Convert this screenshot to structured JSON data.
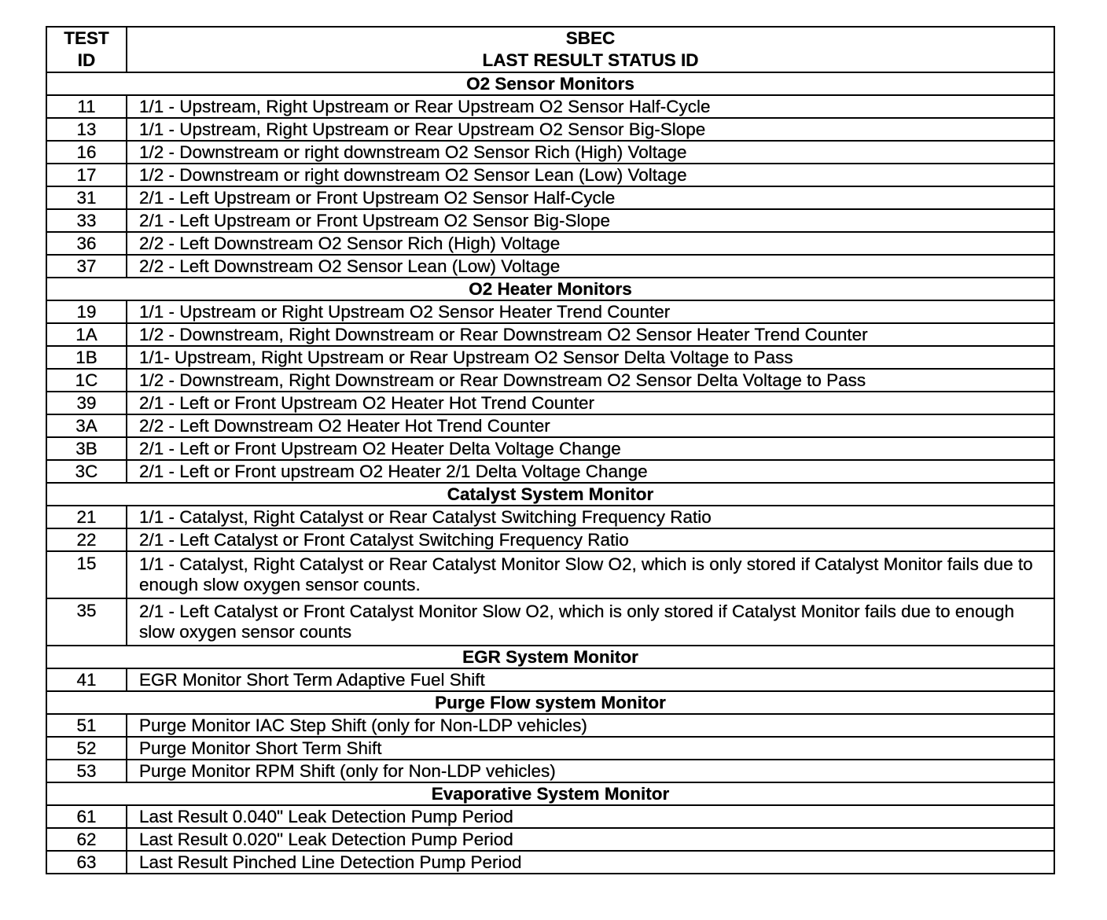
{
  "header": {
    "test_id_line1": "TEST",
    "test_id_line2": "ID",
    "title_line1": "SBEC",
    "title_line2": "LAST RESULT STATUS ID"
  },
  "sections": [
    {
      "title": "O2 Sensor Monitors",
      "rows": [
        {
          "id": "11",
          "desc": "1/1 - Upstream, Right Upstream or Rear Upstream O2 Sensor Half-Cycle"
        },
        {
          "id": "13",
          "desc": "1/1 - Upstream, Right Upstream or Rear Upstream O2 Sensor Big-Slope"
        },
        {
          "id": "16",
          "desc": "1/2 - Downstream or right downstream O2 Sensor Rich (High) Voltage"
        },
        {
          "id": "17",
          "desc": "1/2 - Downstream or right downstream O2 Sensor Lean (Low) Voltage"
        },
        {
          "id": "31",
          "desc": "2/1 - Left Upstream or Front Upstream O2 Sensor Half-Cycle"
        },
        {
          "id": "33",
          "desc": "2/1 - Left Upstream or Front Upstream O2 Sensor Big-Slope"
        },
        {
          "id": "36",
          "desc": "2/2 - Left Downstream O2 Sensor Rich (High) Voltage"
        },
        {
          "id": "37",
          "desc": "2/2 - Left Downstream O2 Sensor Lean (Low) Voltage"
        }
      ]
    },
    {
      "title": "O2 Heater Monitors",
      "rows": [
        {
          "id": "19",
          "desc": "1/1 - Upstream or Right Upstream O2 Sensor Heater Trend Counter"
        },
        {
          "id": "1A",
          "desc": "1/2 - Downstream, Right Downstream or Rear Downstream O2 Sensor Heater Trend Counter"
        },
        {
          "id": "1B",
          "desc": "1/1- Upstream, Right Upstream or Rear Upstream O2 Sensor Delta Voltage to Pass"
        },
        {
          "id": "1C",
          "desc": "1/2 - Downstream, Right Downstream or Rear Downstream O2 Sensor Delta Voltage to Pass"
        },
        {
          "id": "39",
          "desc": "2/1 - Left or Front Upstream O2 Heater Hot Trend Counter"
        },
        {
          "id": "3A",
          "desc": "2/2 - Left Downstream O2 Heater Hot Trend Counter"
        },
        {
          "id": "3B",
          "desc": "2/1 - Left or Front Upstream O2 Heater Delta Voltage Change"
        },
        {
          "id": "3C",
          "desc": "2/1 - Left or Front upstream O2 Heater 2/1 Delta Voltage Change"
        }
      ]
    },
    {
      "title": "Catalyst System Monitor",
      "rows": [
        {
          "id": "21",
          "desc": "1/1 - Catalyst, Right Catalyst or Rear Catalyst Switching Frequency Ratio"
        },
        {
          "id": "22",
          "desc": "2/1 - Left Catalyst or Front Catalyst Switching Frequency Ratio"
        },
        {
          "id": "15",
          "desc": "1/1 - Catalyst, Right Catalyst or Rear Catalyst Monitor Slow O2, which is only stored if Catalyst Monitor fails due to enough slow oxygen sensor counts."
        },
        {
          "id": "35",
          "desc": "2/1 - Left Catalyst or Front Catalyst Monitor Slow O2, which is only stored if Catalyst Monitor fails due to enough slow oxygen sensor counts"
        }
      ]
    },
    {
      "title": "EGR System Monitor",
      "rows": [
        {
          "id": "41",
          "desc": "EGR Monitor Short Term Adaptive Fuel Shift"
        }
      ]
    },
    {
      "title": "Purge Flow system Monitor",
      "rows": [
        {
          "id": "51",
          "desc": "Purge Monitor IAC Step Shift (only for Non-LDP vehicles)"
        },
        {
          "id": "52",
          "desc": "Purge Monitor Short Term Shift"
        },
        {
          "id": "53",
          "desc": "Purge Monitor RPM Shift  (only for Non-LDP vehicles)"
        }
      ]
    },
    {
      "title": "Evaporative System Monitor",
      "rows": [
        {
          "id": "61",
          "desc": "Last Result 0.040\" Leak Detection Pump Period"
        },
        {
          "id": "62",
          "desc": "Last Result 0.020\" Leak Detection Pump Period"
        },
        {
          "id": "63",
          "desc": "Last Result Pinched Line Detection Pump Period"
        }
      ]
    }
  ]
}
